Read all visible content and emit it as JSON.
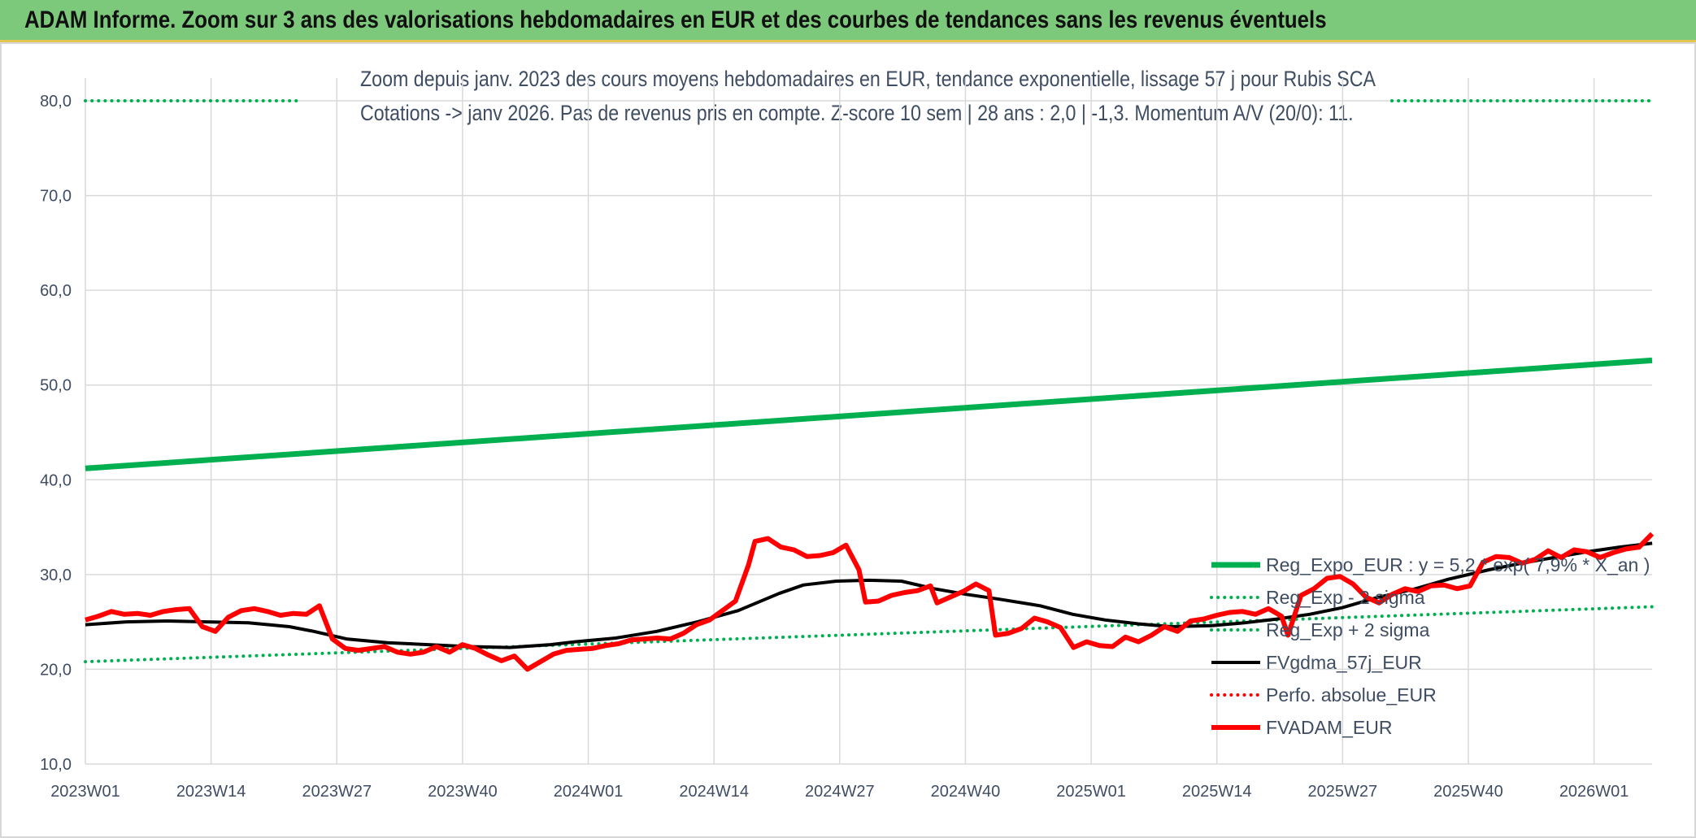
{
  "header": {
    "title": "ADAM Informe. Zoom sur 3 ans des valorisations hebdomadaires en EUR et des courbes de tendances sans les revenus éventuels"
  },
  "chart_data": {
    "type": "line",
    "title": "Zoom depuis janv. 2023 des cours moyens hebdomadaires en EUR, tendance exponentielle, lissage 57 j pour Rubis SCA",
    "subtitle": "Cotations -> janv 2026. Pas de revenus pris en compte. Z-score 10 sem | 28 ans : 2,0 | -1,3. Momentum A/V (20/0): 11.",
    "xlabel": "",
    "ylabel": "",
    "ylim": [
      10,
      80
    ],
    "yticks": [
      "10,0",
      "20,0",
      "30,0",
      "40,0",
      "50,0",
      "60,0",
      "70,0",
      "80,0"
    ],
    "xticks": [
      "2023W01",
      "2023W14",
      "2023W27",
      "2023W40",
      "2024W01",
      "2024W14",
      "2024W27",
      "2024W40",
      "2025W01",
      "2025W14",
      "2025W27",
      "2025W40",
      "2026W01"
    ],
    "x_start": "2023W01",
    "n_weeks": 163,
    "grid": true,
    "legend_position": "right",
    "series": [
      {
        "name": "Reg_Expo_EUR : y = 5,2 * exp( 7,9% * X_an )",
        "color": "#00b050",
        "style": "solid",
        "width": 7,
        "points": [
          [
            0,
            41.2
          ],
          [
            162,
            52.6
          ]
        ]
      },
      {
        "name": "Reg_Exp - 2 sigma",
        "color": "#00b050",
        "style": "dotted",
        "width": 4,
        "points": [
          [
            0,
            20.8
          ],
          [
            162,
            26.6
          ]
        ]
      },
      {
        "name": "Reg_Exp + 2 sigma",
        "color": "#00b050",
        "style": "dotted",
        "width": 4,
        "points": [
          [
            0,
            80.0
          ],
          [
            162,
            80.0
          ]
        ]
      },
      {
        "name": "FVgdma_57j_EUR",
        "color": "#000000",
        "style": "solid",
        "width": 4,
        "points": [
          [
            0,
            24.7
          ],
          [
            5,
            25.0
          ],
          [
            10,
            25.1
          ],
          [
            15,
            25.0
          ],
          [
            20,
            24.9
          ],
          [
            25,
            24.5
          ],
          [
            28,
            24.0
          ],
          [
            32,
            23.2
          ],
          [
            37,
            22.8
          ],
          [
            42,
            22.6
          ],
          [
            47,
            22.4
          ],
          [
            52,
            22.3
          ],
          [
            57,
            22.6
          ],
          [
            60,
            22.9
          ],
          [
            65,
            23.3
          ],
          [
            70,
            24.0
          ],
          [
            75,
            25.0
          ],
          [
            80,
            26.2
          ],
          [
            85,
            28.0
          ],
          [
            88,
            28.9
          ],
          [
            92,
            29.3
          ],
          [
            96,
            29.4
          ],
          [
            100,
            29.3
          ],
          [
            104,
            28.5
          ],
          [
            108,
            27.9
          ],
          [
            112,
            27.4
          ],
          [
            117,
            26.7
          ],
          [
            121,
            25.8
          ],
          [
            125,
            25.2
          ],
          [
            129,
            24.8
          ],
          [
            133,
            24.5
          ],
          [
            138,
            24.6
          ],
          [
            142,
            24.9
          ],
          [
            146,
            25.3
          ],
          [
            150,
            25.8
          ],
          [
            154,
            26.5
          ],
          [
            158,
            27.5
          ],
          [
            163,
            28.5
          ],
          [
            167,
            29.5
          ],
          [
            172,
            30.5
          ],
          [
            176,
            31.2
          ],
          [
            180,
            31.8
          ],
          [
            184,
            32.4
          ],
          [
            188,
            32.9
          ],
          [
            192,
            33.3
          ]
        ],
        "x_scale": 0.8438
      },
      {
        "name": "Perfo. absolue_EUR",
        "color": "#ff0000",
        "style": "dotted",
        "width": 4,
        "points": []
      },
      {
        "name": "FVADAM_EUR",
        "color": "#ff0000",
        "style": "solid",
        "width": 6,
        "points": [
          [
            0,
            25.2
          ],
          [
            2,
            25.6
          ],
          [
            4,
            26.1
          ],
          [
            6,
            25.8
          ],
          [
            8,
            25.9
          ],
          [
            10,
            25.7
          ],
          [
            12,
            26.1
          ],
          [
            14,
            26.3
          ],
          [
            16,
            26.4
          ],
          [
            18,
            24.5
          ],
          [
            20,
            24.0
          ],
          [
            22,
            25.5
          ],
          [
            24,
            26.2
          ],
          [
            26,
            26.4
          ],
          [
            28,
            26.1
          ],
          [
            30,
            25.7
          ],
          [
            32,
            25.9
          ],
          [
            34,
            25.8
          ],
          [
            36,
            26.7
          ],
          [
            38,
            23.2
          ],
          [
            40,
            22.2
          ],
          [
            42,
            22.0
          ],
          [
            44,
            22.2
          ],
          [
            46,
            22.4
          ],
          [
            48,
            21.8
          ],
          [
            50,
            21.6
          ],
          [
            52,
            21.8
          ],
          [
            54,
            22.4
          ],
          [
            56,
            21.8
          ],
          [
            58,
            22.6
          ],
          [
            60,
            22.2
          ],
          [
            62,
            21.5
          ],
          [
            64,
            20.9
          ],
          [
            66,
            21.4
          ],
          [
            68,
            20.0
          ],
          [
            70,
            20.8
          ],
          [
            72,
            21.6
          ],
          [
            74,
            22.0
          ],
          [
            76,
            22.1
          ],
          [
            78,
            22.2
          ],
          [
            80,
            22.5
          ],
          [
            82,
            22.7
          ],
          [
            84,
            23.1
          ],
          [
            86,
            23.2
          ],
          [
            88,
            23.3
          ],
          [
            90,
            23.2
          ],
          [
            92,
            23.8
          ],
          [
            94,
            24.7
          ],
          [
            96,
            25.2
          ],
          [
            98,
            26.2
          ],
          [
            100,
            27.2
          ],
          [
            102,
            31.0
          ],
          [
            103,
            33.5
          ],
          [
            105,
            33.8
          ],
          [
            107,
            32.9
          ],
          [
            109,
            32.6
          ],
          [
            111,
            31.9
          ],
          [
            113,
            32.0
          ],
          [
            115,
            32.3
          ],
          [
            117,
            33.1
          ],
          [
            119,
            30.5
          ],
          [
            120,
            27.1
          ],
          [
            122,
            27.2
          ],
          [
            124,
            27.8
          ],
          [
            126,
            28.1
          ],
          [
            128,
            28.3
          ],
          [
            130,
            28.8
          ],
          [
            131,
            27.0
          ],
          [
            133,
            27.6
          ],
          [
            135,
            28.2
          ],
          [
            137,
            29.0
          ],
          [
            139,
            28.3
          ],
          [
            140,
            23.6
          ],
          [
            142,
            23.8
          ],
          [
            144,
            24.3
          ],
          [
            146,
            25.4
          ],
          [
            148,
            25.0
          ],
          [
            150,
            24.4
          ],
          [
            152,
            22.3
          ],
          [
            154,
            22.9
          ],
          [
            156,
            22.5
          ],
          [
            158,
            22.4
          ],
          [
            160,
            23.4
          ],
          [
            162,
            22.9
          ],
          [
            164,
            23.6
          ],
          [
            166,
            24.5
          ],
          [
            168,
            24.0
          ],
          [
            170,
            25.1
          ],
          [
            172,
            25.3
          ],
          [
            174,
            25.7
          ],
          [
            176,
            26.0
          ],
          [
            178,
            26.1
          ],
          [
            180,
            25.8
          ],
          [
            182,
            26.4
          ],
          [
            184,
            25.6
          ],
          [
            185,
            23.6
          ],
          [
            187,
            27.8
          ],
          [
            189,
            28.5
          ],
          [
            191,
            29.6
          ],
          [
            193,
            29.8
          ],
          [
            195,
            29.0
          ],
          [
            197,
            27.6
          ],
          [
            199,
            27.0
          ],
          [
            201,
            27.9
          ],
          [
            203,
            28.5
          ],
          [
            205,
            28.2
          ],
          [
            207,
            28.8
          ],
          [
            209,
            28.9
          ],
          [
            211,
            28.5
          ],
          [
            213,
            28.8
          ],
          [
            215,
            31.3
          ],
          [
            217,
            31.9
          ],
          [
            219,
            31.8
          ],
          [
            221,
            31.2
          ],
          [
            223,
            31.6
          ],
          [
            225,
            32.5
          ],
          [
            227,
            31.8
          ],
          [
            229,
            32.6
          ],
          [
            231,
            32.4
          ],
          [
            233,
            31.8
          ],
          [
            235,
            32.3
          ],
          [
            237,
            32.7
          ],
          [
            239,
            32.9
          ],
          [
            241,
            34.3
          ]
        ],
        "x_scale": 0.6722
      }
    ]
  }
}
